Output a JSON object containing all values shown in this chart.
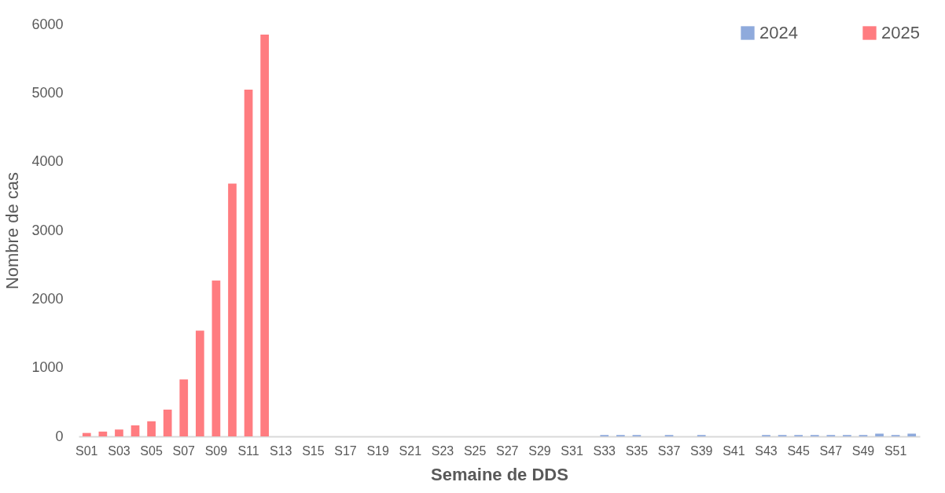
{
  "chart_data": {
    "type": "bar",
    "xlabel": "Semaine de DDS",
    "ylabel": "Nombre de cas",
    "categories": [
      "S01",
      null,
      "S03",
      null,
      "S05",
      null,
      "S07",
      null,
      "S09",
      null,
      "S11",
      null,
      "S13",
      null,
      "S15",
      null,
      "S17",
      null,
      "S19",
      null,
      "S21",
      null,
      "S23",
      null,
      "S25",
      null,
      "S27",
      null,
      "S29",
      null,
      "S31",
      null,
      "S33",
      null,
      "S35",
      null,
      "S37",
      null,
      "S39",
      null,
      "S41",
      null,
      "S43",
      null,
      "S45",
      null,
      "S47",
      null,
      "S49",
      null,
      "S51",
      null
    ],
    "series": [
      {
        "name": "2024",
        "color": "#8faadc",
        "values": [
          null,
          null,
          null,
          null,
          null,
          null,
          null,
          null,
          null,
          null,
          null,
          null,
          null,
          null,
          null,
          null,
          null,
          null,
          null,
          null,
          null,
          null,
          null,
          null,
          null,
          null,
          null,
          null,
          null,
          null,
          null,
          null,
          20,
          20,
          20,
          null,
          20,
          null,
          20,
          null,
          null,
          null,
          20,
          20,
          20,
          20,
          20,
          20,
          20,
          40,
          20,
          40
        ]
      },
      {
        "name": "2025",
        "color": "#ff7c80",
        "values": [
          50,
          70,
          100,
          160,
          220,
          390,
          830,
          1540,
          2270,
          3680,
          5050,
          5850,
          null,
          null,
          null,
          null,
          null,
          null,
          null,
          null,
          null,
          null,
          null,
          null,
          null,
          null,
          null,
          null,
          null,
          null,
          null,
          null,
          null,
          null,
          null,
          null,
          null,
          null,
          null,
          null,
          null,
          null,
          null,
          null,
          null,
          null,
          null,
          null,
          null,
          null,
          null,
          null
        ]
      }
    ],
    "ylim": [
      0,
      6000
    ],
    "yticks": [
      0,
      1000,
      2000,
      3000,
      4000,
      5000,
      6000
    ],
    "grid": false,
    "legend": "top right"
  }
}
